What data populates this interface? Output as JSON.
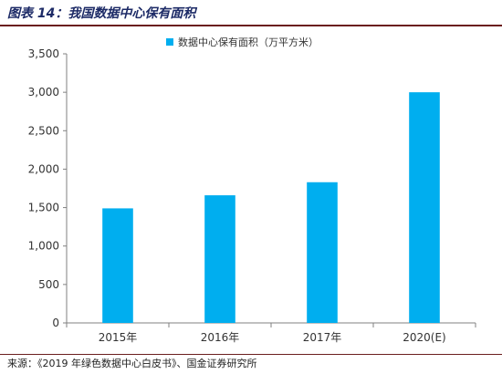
{
  "figure": {
    "title": "图表 14：我国数据中心保有面积",
    "source": "来源：《2019 年绿色数据中心白皮书》、国金证券研究所"
  },
  "chart_data": {
    "type": "bar",
    "categories": [
      "2015年",
      "2016年",
      "2017年",
      "2020(E)"
    ],
    "series": [
      {
        "name": "数据中心保有面积（万平方米）",
        "values": [
          1490,
          1660,
          1830,
          3000
        ],
        "color": "#00aeef"
      }
    ],
    "y_ticks": [
      "0",
      "500",
      "1,000",
      "1,500",
      "2,000",
      "2,500",
      "3,000",
      "3,500"
    ],
    "ylim": [
      0,
      3500
    ],
    "grid": false,
    "legend_position": "top-center"
  }
}
